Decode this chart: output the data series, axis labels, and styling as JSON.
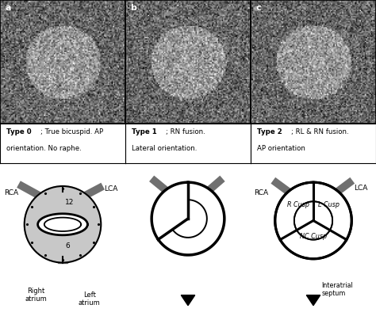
{
  "bg_color": "#ffffff",
  "gray_circle": "#c8c8c8",
  "gray_dark": "#707070",
  "black": "#000000",
  "white": "#ffffff",
  "text_type0_bold": "Type 0",
  "text_type0_rest": "; True bicuspid. AP\norientation. No raphe.",
  "text_type1_bold": "Type 1",
  "text_type1_rest": "; RN fusion.\nLateral orientation.",
  "text_type2_bold": "Type 2",
  "text_type2_rest": "; RL & RN fusion.\nAP orientation",
  "col_sep": 0.333
}
